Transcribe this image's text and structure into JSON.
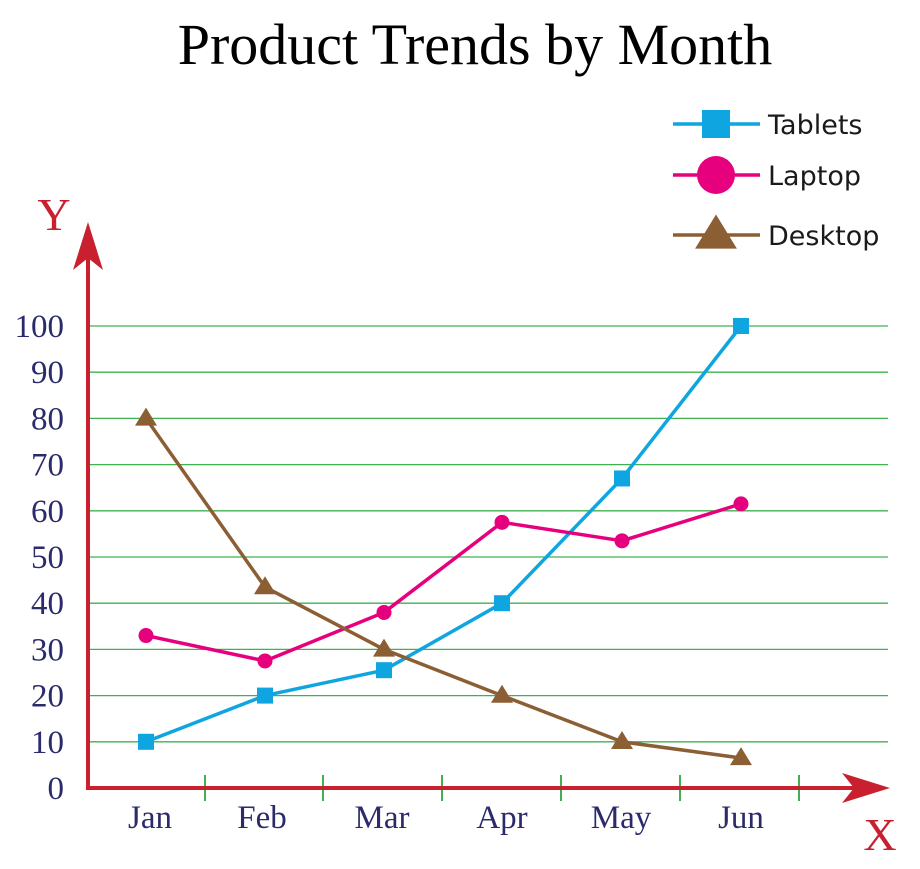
{
  "chart_data": {
    "type": "line",
    "title": "Product Trends by Month",
    "xlabel": "X",
    "ylabel": "Y",
    "categories": [
      "Jan",
      "Feb",
      "Mar",
      "Apr",
      "May",
      "Jun"
    ],
    "ylim": [
      0,
      100
    ],
    "yticks": [
      0,
      10,
      20,
      30,
      40,
      50,
      60,
      70,
      80,
      90,
      100
    ],
    "grid": true,
    "legend_position": "top-right",
    "series": [
      {
        "name": "Tablets",
        "marker": "square",
        "color": "#0ea5e0",
        "values": [
          10,
          20,
          25.5,
          40,
          67,
          100
        ]
      },
      {
        "name": "Laptop",
        "marker": "circle",
        "color": "#e6007e",
        "values": [
          33,
          27.5,
          38,
          57.5,
          53.5,
          61.5
        ]
      },
      {
        "name": "Desktop",
        "marker": "triangle",
        "color": "#8b5e34",
        "values": [
          80,
          43.5,
          30,
          20,
          10,
          6.5
        ]
      }
    ],
    "colors": {
      "axis": "#c8202f",
      "grid": "#3fb24f",
      "tick_text": "#2b2b6b"
    }
  }
}
